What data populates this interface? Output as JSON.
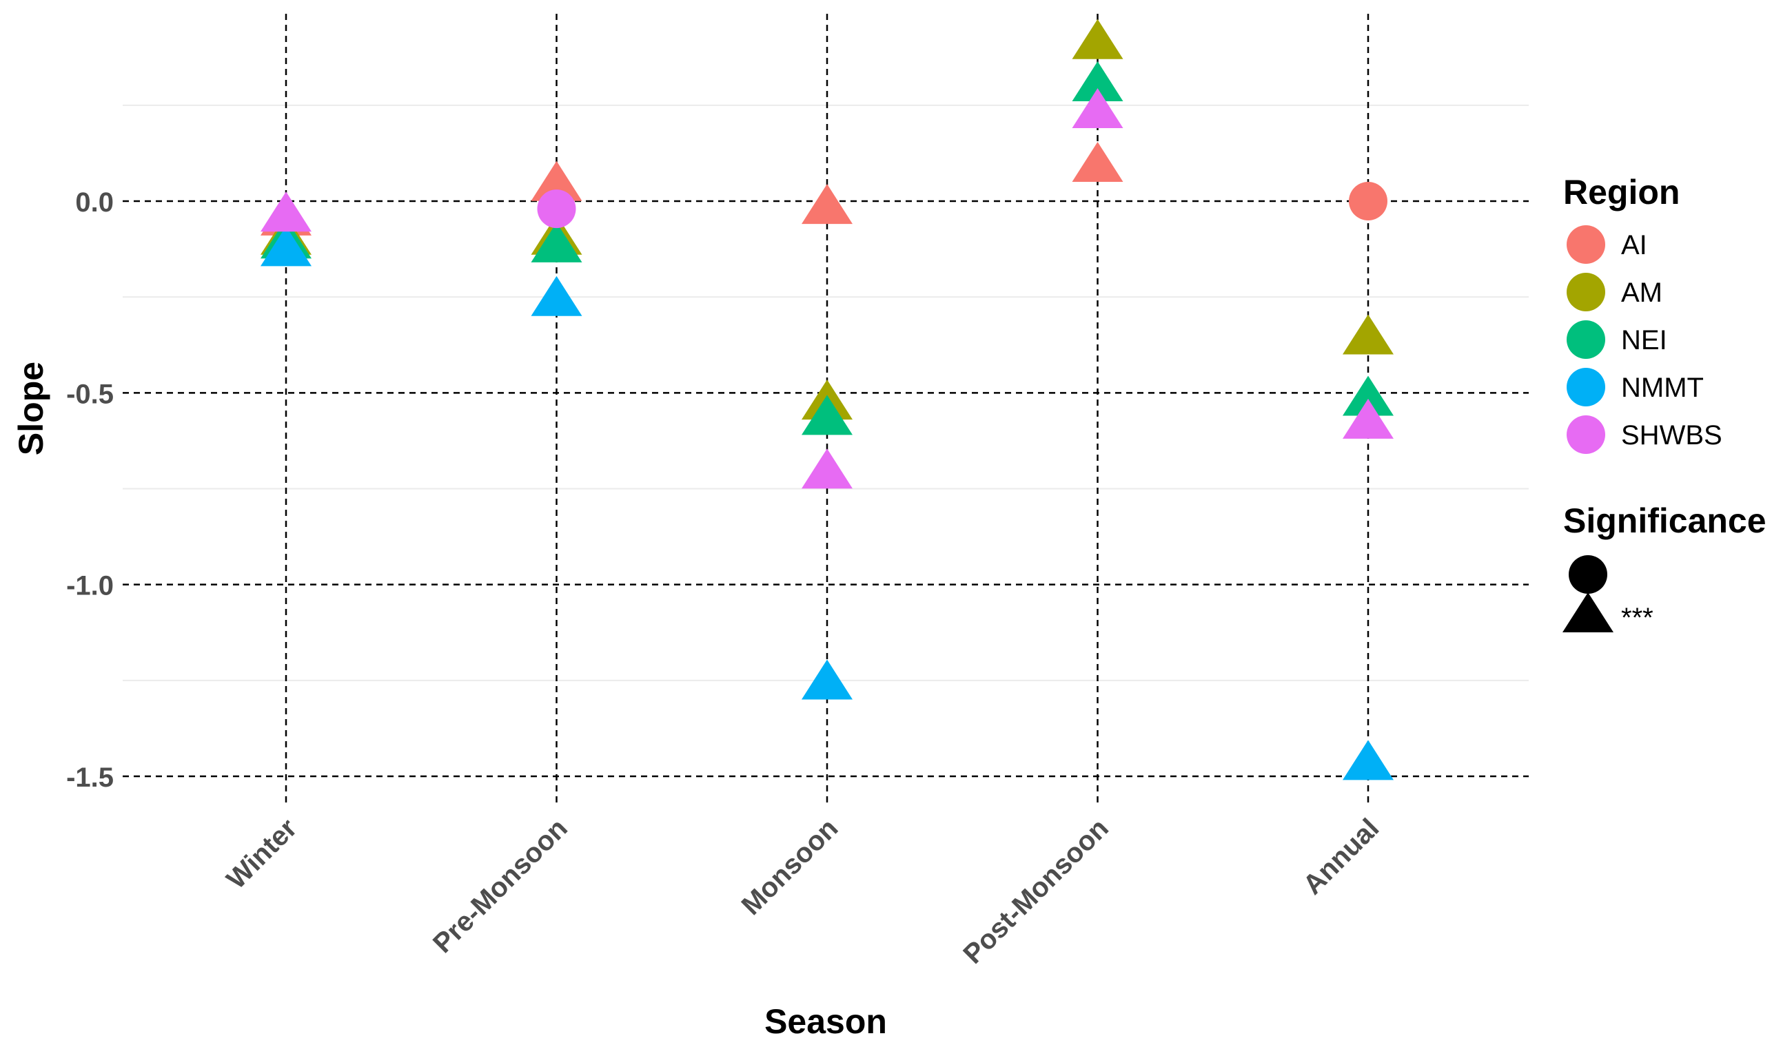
{
  "chart_data": {
    "type": "scatter",
    "xlabel": "Season",
    "ylabel": "Slope",
    "categories": [
      "Winter",
      "Pre-Monsoon",
      "Monsoon",
      "Post-Monsoon",
      "Annual"
    ],
    "y_ticks": [
      {
        "value": 0.0,
        "label": "0.0"
      },
      {
        "value": -0.5,
        "label": "-0.5"
      },
      {
        "value": -1.0,
        "label": "-1.0"
      },
      {
        "value": -1.5,
        "label": "-1.5"
      }
    ],
    "ylim": [
      -1.58,
      0.48
    ],
    "grid": "dashed major lines at x categories and y ticks; faint minor lines",
    "significance_shapes": {
      "": "circle",
      "***": "triangle"
    },
    "series": [
      {
        "name": "AI",
        "color": "#F8766D",
        "points": [
          {
            "category": "Winter",
            "value": -0.05,
            "significance": "***"
          },
          {
            "category": "Pre-Monsoon",
            "value": 0.04,
            "significance": "***"
          },
          {
            "category": "Monsoon",
            "value": -0.02,
            "significance": "***"
          },
          {
            "category": "Post-Monsoon",
            "value": 0.09,
            "significance": "***"
          },
          {
            "category": "Annual",
            "value": 0.0,
            "significance": ""
          }
        ]
      },
      {
        "name": "AM",
        "color": "#A3A500",
        "points": [
          {
            "category": "Winter",
            "value": -0.1,
            "significance": "***"
          },
          {
            "category": "Pre-Monsoon",
            "value": -0.1,
            "significance": "***"
          },
          {
            "category": "Monsoon",
            "value": -0.53,
            "significance": "***"
          },
          {
            "category": "Post-Monsoon",
            "value": 0.41,
            "significance": "***"
          },
          {
            "category": "Annual",
            "value": -0.36,
            "significance": "***"
          }
        ]
      },
      {
        "name": "NEI",
        "color": "#00BF7D",
        "points": [
          {
            "category": "Winter",
            "value": -0.11,
            "significance": "***"
          },
          {
            "category": "Pre-Monsoon",
            "value": -0.12,
            "significance": "***"
          },
          {
            "category": "Monsoon",
            "value": -0.57,
            "significance": "***"
          },
          {
            "category": "Post-Monsoon",
            "value": 0.3,
            "significance": "***"
          },
          {
            "category": "Annual",
            "value": -0.52,
            "significance": "***"
          }
        ]
      },
      {
        "name": "NMMT",
        "color": "#00B0F6",
        "points": [
          {
            "category": "Winter",
            "value": -0.13,
            "significance": "***"
          },
          {
            "category": "Pre-Monsoon",
            "value": -0.26,
            "significance": "***"
          },
          {
            "category": "Monsoon",
            "value": -1.26,
            "significance": "***"
          },
          {
            "category": "Annual",
            "value": -1.47,
            "significance": "***"
          }
        ]
      },
      {
        "name": "SHWBS",
        "color": "#E76BF3",
        "points": [
          {
            "category": "Winter",
            "value": -0.04,
            "significance": "***"
          },
          {
            "category": "Pre-Monsoon",
            "value": -0.02,
            "significance": ""
          },
          {
            "category": "Monsoon",
            "value": -0.71,
            "significance": "***"
          },
          {
            "category": "Post-Monsoon",
            "value": 0.23,
            "significance": "***"
          },
          {
            "category": "Annual",
            "value": -0.58,
            "significance": "***"
          }
        ]
      }
    ],
    "legend": {
      "placement": "right",
      "region_title": "Region",
      "significance_title": "Significance",
      "significance_items": [
        {
          "shape": "circle",
          "label": ""
        },
        {
          "shape": "triangle",
          "label": "***"
        }
      ]
    }
  }
}
